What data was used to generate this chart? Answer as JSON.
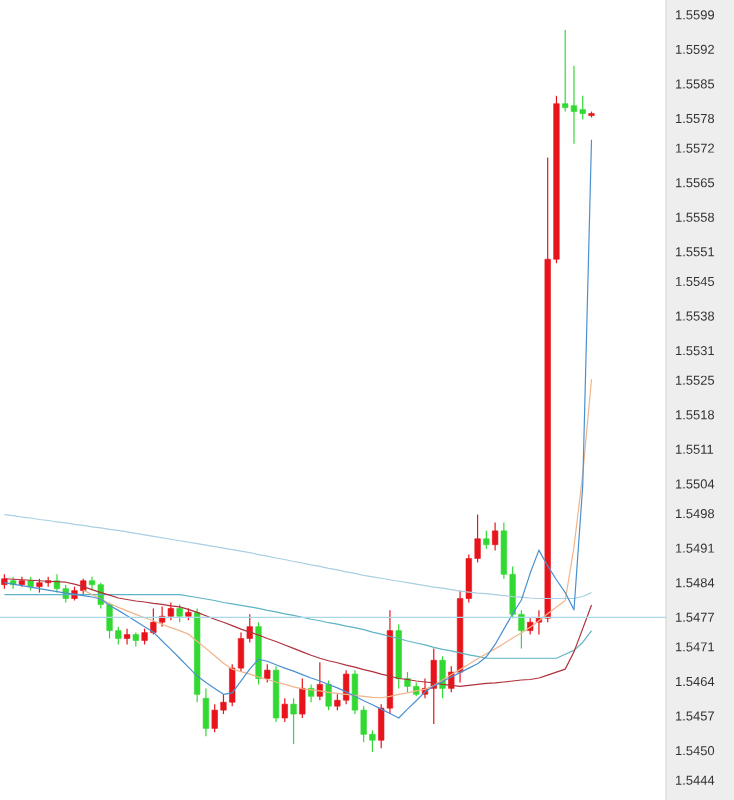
{
  "chart_data": {
    "type": "candlestick",
    "categories": [
      null,
      null,
      null,
      null,
      null,
      null,
      null,
      null,
      null,
      null,
      null,
      null,
      null,
      null,
      null,
      null,
      null,
      null,
      null,
      null,
      null,
      null,
      null,
      null,
      null,
      null,
      null,
      null,
      null,
      null,
      null,
      null,
      null,
      null,
      null,
      null,
      null,
      null,
      null,
      null,
      null,
      null,
      null,
      null,
      null,
      null,
      null,
      null,
      null,
      null,
      null,
      null,
      null,
      null,
      null,
      null,
      null,
      null,
      null,
      null,
      null,
      null,
      null,
      null,
      null,
      null,
      null,
      null,
      null,
      null,
      null,
      null,
      null,
      null,
      null,
      null
    ],
    "ohlc": [
      [
        1.54836,
        1.54857,
        1.54828,
        1.54848
      ],
      [
        1.54844,
        1.54852,
        1.54828,
        1.54836
      ],
      [
        1.54836,
        1.54852,
        1.54832,
        1.54844
      ],
      [
        1.54844,
        1.54852,
        1.54824,
        1.54832
      ],
      [
        1.54832,
        1.54848,
        1.5482,
        1.5484
      ],
      [
        1.5484,
        1.54852,
        1.54832,
        1.54844
      ],
      [
        1.54844,
        1.54857,
        1.5482,
        1.54828
      ],
      [
        1.54828,
        1.54836,
        1.548,
        1.54808
      ],
      [
        1.54808,
        1.54832,
        1.54804,
        1.54824
      ],
      [
        1.54824,
        1.54848,
        1.54816,
        1.54844
      ],
      [
        1.54844,
        1.54852,
        1.54824,
        1.54836
      ],
      [
        1.54836,
        1.5484,
        1.54788,
        1.54796
      ],
      [
        1.54796,
        1.548,
        1.54727,
        1.54743
      ],
      [
        1.54743,
        1.54751,
        1.54715,
        1.54727
      ],
      [
        1.54727,
        1.54747,
        1.54715,
        1.54735
      ],
      [
        1.54735,
        1.54739,
        1.54711,
        1.54723
      ],
      [
        1.54723,
        1.54747,
        1.54715,
        1.54739
      ],
      [
        1.54739,
        1.54788,
        1.54735,
        1.5476
      ],
      [
        1.5476,
        1.54792,
        1.54751,
        1.54772
      ],
      [
        1.54772,
        1.548,
        1.54764,
        1.54788
      ],
      [
        1.54788,
        1.54796,
        1.5476,
        1.54772
      ],
      [
        1.54772,
        1.54788,
        1.54764,
        1.5478
      ],
      [
        1.5478,
        1.54788,
        1.54598,
        1.54614
      ],
      [
        1.54606,
        1.54626,
        1.54529,
        1.54545
      ],
      [
        1.54545,
        1.54594,
        1.54537,
        1.54582
      ],
      [
        1.54582,
        1.54614,
        1.54574,
        1.54598
      ],
      [
        1.54598,
        1.54675,
        1.5459,
        1.54667
      ],
      [
        1.54667,
        1.54739,
        1.54659,
        1.54727
      ],
      [
        1.54727,
        1.54776,
        1.54719,
        1.54751
      ],
      [
        1.54751,
        1.5476,
        1.54634,
        1.54646
      ],
      [
        1.54646,
        1.54675,
        1.54638,
        1.54663
      ],
      [
        1.54663,
        1.54671,
        1.54558,
        1.54566
      ],
      [
        1.54566,
        1.54606,
        1.54558,
        1.54594
      ],
      [
        1.54594,
        1.54606,
        1.54513,
        1.54574
      ],
      [
        1.54574,
        1.54646,
        1.54566,
        1.54626
      ],
      [
        1.54626,
        1.54634,
        1.54598,
        1.5461
      ],
      [
        1.5461,
        1.54679,
        1.54602,
        1.54634
      ],
      [
        1.54634,
        1.54642,
        1.54582,
        1.5459
      ],
      [
        1.5459,
        1.54614,
        1.54582,
        1.54602
      ],
      [
        1.54602,
        1.54663,
        1.54594,
        1.54655
      ],
      [
        1.54655,
        1.54663,
        1.54574,
        1.54582
      ],
      [
        1.54582,
        1.5459,
        1.54517,
        1.54533
      ],
      [
        1.54533,
        1.54541,
        1.54497,
        1.54521
      ],
      [
        1.54521,
        1.54594,
        1.54505,
        1.54586
      ],
      [
        1.54586,
        1.54784,
        1.54574,
        1.54743
      ],
      [
        1.54743,
        1.54756,
        1.54626,
        1.54646
      ],
      [
        1.54646,
        1.54659,
        1.54618,
        1.5463
      ],
      [
        1.5463,
        1.54638,
        1.5461,
        1.54614
      ],
      [
        1.54614,
        1.54646,
        1.54606,
        1.54626
      ],
      [
        1.54626,
        1.54707,
        1.54554,
        1.54683
      ],
      [
        1.54683,
        1.54691,
        1.54606,
        1.54626
      ],
      [
        1.54626,
        1.54671,
        1.54618,
        1.54659
      ],
      [
        1.54659,
        1.54824,
        1.54638,
        1.54808
      ],
      [
        1.54808,
        1.54897,
        1.548,
        1.54889
      ],
      [
        1.54889,
        1.54978,
        1.54881,
        1.54929
      ],
      [
        1.54929,
        1.54945,
        1.54909,
        1.54917
      ],
      [
        1.54917,
        1.54962,
        1.54905,
        1.54945
      ],
      [
        1.54945,
        1.54962,
        1.54848,
        1.54857
      ],
      [
        1.54857,
        1.54873,
        1.54768,
        1.54776
      ],
      [
        1.54776,
        1.54784,
        1.54707,
        1.54743
      ],
      [
        1.54743,
        1.54768,
        1.54735,
        1.5476
      ],
      [
        1.5476,
        1.54784,
        1.54735,
        1.54768
      ],
      [
        1.54768,
        1.55701,
        1.5476,
        1.55495
      ],
      [
        1.55495,
        1.55826,
        1.55487,
        1.5581
      ],
      [
        1.5581,
        1.55959,
        1.55794,
        1.55802
      ],
      [
        1.55806,
        1.55887,
        1.55729,
        1.55794
      ],
      [
        1.55798,
        1.55826,
        1.55778,
        1.5579
      ],
      [
        1.55786,
        1.55794,
        1.55782,
        1.5579
      ],
      null,
      null,
      null,
      null,
      null,
      null,
      null,
      null
    ],
    "colors": [
      "#e8141c",
      "#33d933",
      "#e8141c",
      "#33d933",
      "#e8141c",
      "#e8141c",
      "#33d933",
      "#33d933",
      "#e8141c",
      "#e8141c",
      "#33d933",
      "#33d933",
      "#33d933",
      "#33d933",
      "#e8141c",
      "#33d933",
      "#e8141c",
      "#e8141c",
      "#e8141c",
      "#e8141c",
      "#33d933",
      "#e8141c",
      "#33d933",
      "#33d933",
      "#e8141c",
      "#e8141c",
      "#e8141c",
      "#e8141c",
      "#e8141c",
      "#33d933",
      "#e8141c",
      "#33d933",
      "#e8141c",
      "#33d933",
      "#e8141c",
      "#33d933",
      "#e8141c",
      "#33d933",
      "#e8141c",
      "#e8141c",
      "#33d933",
      "#33d933",
      "#33d933",
      "#e8141c",
      "#e8141c",
      "#33d933",
      "#33d933",
      "#33d933",
      "#e8141c",
      "#e8141c",
      "#33d933",
      "#e8141c",
      "#e8141c",
      "#e8141c",
      "#e8141c",
      "#33d933",
      "#e8141c",
      "#33d933",
      "#33d933",
      "#33d933",
      "#e8141c",
      "#e8141c",
      "#e8141c",
      "#e8141c",
      "#33d933",
      "#33d933",
      "#33d933",
      "#e8141c",
      null,
      null,
      null,
      null,
      null,
      null,
      null,
      null
    ],
    "series": [
      {
        "type": "line",
        "color": "#a9cfe3",
        "values": [
          1.54978,
          1.54976,
          1.54973,
          1.54971,
          1.54968,
          1.54966,
          1.54963,
          1.54961,
          1.54958,
          1.54956,
          1.54953,
          1.54951,
          1.54948,
          1.54946,
          1.54943,
          1.5494,
          1.54937,
          1.54934,
          1.54931,
          1.54928,
          1.54925,
          1.54922,
          1.54919,
          1.54916,
          1.54913,
          1.5491,
          1.54907,
          1.54904,
          1.54901,
          1.54897,
          1.54894,
          1.5489,
          1.54887,
          1.54883,
          1.5488,
          1.54876,
          1.54873,
          1.54869,
          1.54866,
          1.54862,
          1.54859,
          1.54855,
          1.54852,
          1.54849,
          1.54846,
          1.54843,
          1.5484,
          1.54837,
          1.54834,
          1.54831,
          1.54829,
          1.54826,
          1.54823,
          1.54821,
          1.54819,
          1.54818,
          1.54816,
          1.54814,
          1.54812,
          1.54811,
          1.54809,
          1.54808,
          1.54808,
          1.54808,
          1.54808,
          1.54808,
          1.54812,
          1.5482,
          null,
          null,
          null,
          null,
          null,
          null,
          null,
          null
        ]
      },
      {
        "type": "line",
        "color": "#5fb3c6",
        "values": [
          1.54816,
          1.54816,
          1.54816,
          1.54816,
          1.54816,
          1.54816,
          1.54816,
          1.54816,
          1.54816,
          1.54816,
          1.54816,
          1.54816,
          1.54816,
          1.54816,
          1.54816,
          1.54816,
          1.54816,
          1.54816,
          1.54816,
          1.54816,
          1.54816,
          1.54813,
          1.5481,
          1.54807,
          1.54804,
          1.548,
          1.54797,
          1.54794,
          1.54791,
          1.54788,
          1.54784,
          1.54781,
          1.54777,
          1.54774,
          1.5477,
          1.54766,
          1.54763,
          1.54759,
          1.54756,
          1.54752,
          1.54749,
          1.54745,
          1.5474,
          1.54736,
          1.54731,
          1.54727,
          1.54722,
          1.54718,
          1.54714,
          1.54709,
          1.54705,
          1.54702,
          1.54698,
          1.54694,
          1.54691,
          1.54687,
          1.54687,
          1.54687,
          1.54687,
          1.54687,
          1.54687,
          1.54687,
          1.54687,
          1.54687,
          1.54695,
          1.54703,
          1.54719,
          1.54743,
          null,
          null,
          null,
          null,
          null,
          null,
          null,
          null
        ]
      },
      {
        "type": "line",
        "color": "#b0303c",
        "values": [
          1.54848,
          1.54847,
          1.54846,
          1.54845,
          1.54844,
          1.54843,
          1.54842,
          1.54841,
          1.54837,
          1.54832,
          1.54826,
          1.5482,
          1.54815,
          1.54809,
          1.54806,
          1.54803,
          1.54801,
          1.54798,
          1.54796,
          1.54793,
          1.54791,
          1.54786,
          1.5478,
          1.54773,
          1.54766,
          1.5476,
          1.54753,
          1.54746,
          1.5474,
          1.54734,
          1.54727,
          1.54721,
          1.54714,
          1.54707,
          1.547,
          1.54693,
          1.54687,
          1.54682,
          1.54678,
          1.54673,
          1.54669,
          1.54664,
          1.5466,
          1.54655,
          1.54651,
          1.54646,
          1.54644,
          1.54641,
          1.54639,
          1.54637,
          1.54634,
          1.54632,
          1.5463,
          1.54632,
          1.54634,
          1.54636,
          1.54637,
          1.54639,
          1.54641,
          1.54643,
          1.54644,
          1.54647,
          1.54653,
          1.54659,
          1.54665,
          1.547,
          1.54747,
          1.54795,
          null,
          null,
          null,
          null,
          null,
          null,
          null,
          null
        ]
      },
      {
        "type": "line",
        "color": "#f0b48a",
        "values": [
          null,
          null,
          null,
          null,
          null,
          null,
          null,
          null,
          null,
          1.54825,
          1.54816,
          1.54807,
          1.54798,
          1.5479,
          1.54783,
          1.54776,
          1.54769,
          1.54763,
          1.54756,
          1.54749,
          1.54743,
          1.54736,
          1.54721,
          1.54707,
          1.54692,
          1.54677,
          1.54665,
          1.5466,
          1.54655,
          1.54649,
          1.54644,
          1.54639,
          1.54634,
          1.54629,
          1.54625,
          1.54623,
          1.54621,
          1.54618,
          1.54616,
          1.54614,
          1.54612,
          1.5461,
          1.54608,
          1.54607,
          1.5461,
          1.54614,
          1.54617,
          1.54621,
          1.54624,
          1.54632,
          1.54643,
          1.54654,
          1.54664,
          1.54675,
          1.54686,
          1.54696,
          1.54706,
          1.54717,
          1.54728,
          1.54738,
          1.5475,
          1.54763,
          1.54777,
          1.54791,
          1.54804,
          1.54912,
          1.5506,
          1.55252,
          null,
          null,
          null,
          null,
          null,
          null,
          null,
          null
        ]
      },
      {
        "type": "line",
        "color": "#4a90d0",
        "values": [
          1.5484,
          1.54837,
          1.54834,
          1.54831,
          1.54828,
          1.54825,
          1.54822,
          1.54819,
          1.54817,
          1.54814,
          1.54811,
          1.54807,
          1.54794,
          1.54784,
          1.54773,
          1.54762,
          1.54751,
          1.5474,
          1.54722,
          1.54705,
          1.54687,
          1.54669,
          1.54651,
          1.54638,
          1.54626,
          1.54614,
          1.54617,
          1.54641,
          1.54665,
          1.54685,
          1.54681,
          1.54674,
          1.54667,
          1.54661,
          1.54654,
          1.54647,
          1.54641,
          1.54634,
          1.54627,
          1.54619,
          1.5461,
          1.54601,
          1.54593,
          1.54584,
          1.54575,
          1.54566,
          1.54584,
          1.54601,
          1.54619,
          1.54631,
          1.5464,
          1.54649,
          1.54658,
          1.54667,
          1.54676,
          1.5469,
          1.54715,
          1.54746,
          1.54777,
          1.54805,
          1.54859,
          1.54906,
          1.54874,
          1.54846,
          1.5482,
          1.54785,
          1.55037,
          1.55737,
          null,
          null,
          null,
          null,
          null,
          null,
          null,
          null
        ]
      }
    ],
    "ref_lines": [
      {
        "axis": "y",
        "value": 1.5477,
        "color": "#a8d8e8"
      }
    ],
    "ylim": [
      1.544,
      1.5602
    ],
    "yticks": [
      1.5444,
      {
        "value": 1.545,
        "label": "1.5450"
      },
      1.5457,
      1.5464,
      1.5471,
      1.5477,
      1.5484,
      1.5491,
      1.5498,
      1.5504,
      1.5511,
      1.5518,
      1.5525,
      1.5531,
      1.5538,
      1.5545,
      1.5551,
      1.5558,
      1.5565,
      1.5572,
      1.5578,
      1.5585,
      1.5592,
      1.5599
    ],
    "tick_labels": "y"
  }
}
